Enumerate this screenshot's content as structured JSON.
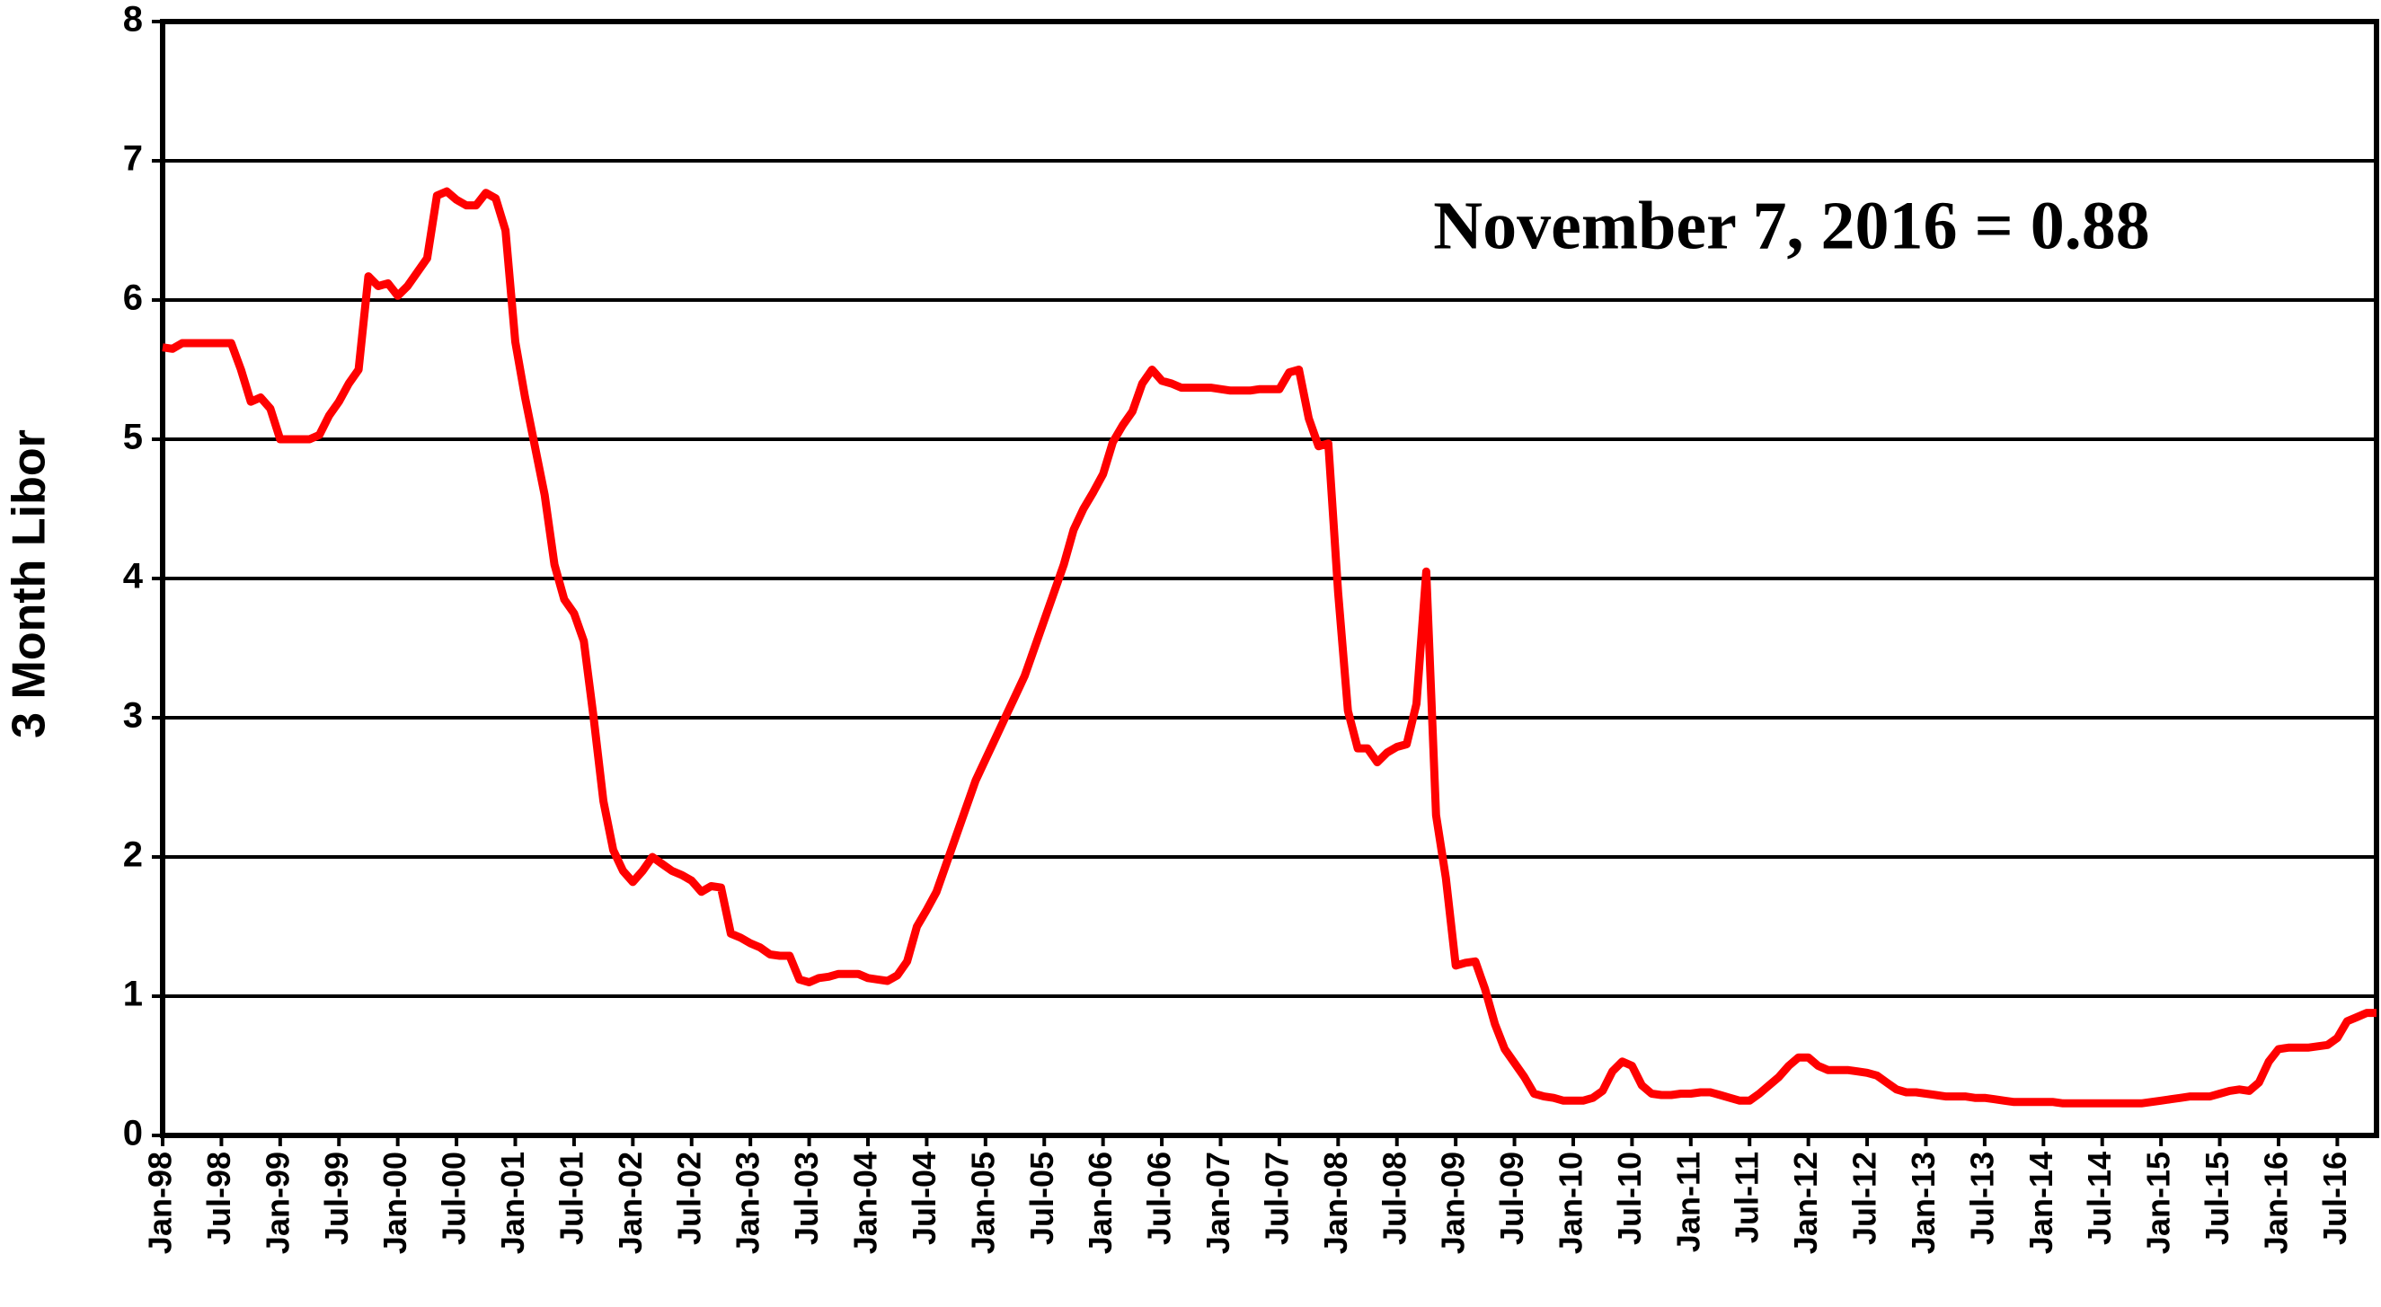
{
  "chart_data": {
    "type": "line",
    "y_label": "3 Month Libor",
    "annotation": "November 7, 2016 = 0.88",
    "annotation_color": "#3333ff",
    "ylim": [
      0,
      8
    ],
    "yticks": [
      0,
      1,
      2,
      3,
      4,
      5,
      6,
      7,
      8
    ],
    "grid": true,
    "categories": [
      "Jan-98",
      null,
      null,
      null,
      null,
      null,
      "Jul-98",
      null,
      null,
      null,
      null,
      null,
      "Jan-99",
      null,
      null,
      null,
      null,
      null,
      "Jul-99",
      null,
      null,
      null,
      null,
      null,
      "Jan-00",
      null,
      null,
      null,
      null,
      null,
      "Jul-00",
      null,
      null,
      null,
      null,
      null,
      "Jan-01",
      null,
      null,
      null,
      null,
      null,
      "Jul-01",
      null,
      null,
      null,
      null,
      null,
      "Jan-02",
      null,
      null,
      null,
      null,
      null,
      "Jul-02",
      null,
      null,
      null,
      null,
      null,
      "Jan-03",
      null,
      null,
      null,
      null,
      null,
      "Jul-03",
      null,
      null,
      null,
      null,
      null,
      "Jan-04",
      null,
      null,
      null,
      null,
      null,
      "Jul-04",
      null,
      null,
      null,
      null,
      null,
      "Jan-05",
      null,
      null,
      null,
      null,
      null,
      "Jul-05",
      null,
      null,
      null,
      null,
      null,
      "Jan-06",
      null,
      null,
      null,
      null,
      null,
      "Jul-06",
      null,
      null,
      null,
      null,
      null,
      "Jan-07",
      null,
      null,
      null,
      null,
      null,
      "Jul-07",
      null,
      null,
      null,
      null,
      null,
      "Jan-08",
      null,
      null,
      null,
      null,
      null,
      "Jul-08",
      null,
      null,
      null,
      null,
      null,
      "Jan-09",
      null,
      null,
      null,
      null,
      null,
      "Jul-09",
      null,
      null,
      null,
      null,
      null,
      "Jan-10",
      null,
      null,
      null,
      null,
      null,
      "Jul-10",
      null,
      null,
      null,
      null,
      null,
      "Jan-11",
      null,
      null,
      null,
      null,
      null,
      "Jul-11",
      null,
      null,
      null,
      null,
      null,
      "Jan-12",
      null,
      null,
      null,
      null,
      null,
      "Jul-12",
      null,
      null,
      null,
      null,
      null,
      "Jan-13",
      null,
      null,
      null,
      null,
      null,
      "Jul-13",
      null,
      null,
      null,
      null,
      null,
      "Jan-14",
      null,
      null,
      null,
      null,
      null,
      "Jul-14",
      null,
      null,
      null,
      null,
      null,
      "Jan-15",
      null,
      null,
      null,
      null,
      null,
      "Jul-15",
      null,
      null,
      null,
      null,
      null,
      "Jan-16",
      null,
      null,
      null,
      null,
      null,
      "Jul-16",
      null,
      null,
      null,
      null
    ],
    "series": [
      {
        "name": "3 Month Libor",
        "color": "#ff0000",
        "values": [
          5.66,
          5.65,
          5.69,
          5.69,
          5.69,
          5.69,
          5.69,
          5.69,
          5.5,
          5.27,
          5.3,
          5.22,
          5.0,
          5.0,
          5.0,
          5.0,
          5.03,
          5.17,
          5.27,
          5.4,
          5.5,
          6.17,
          6.1,
          6.12,
          6.03,
          6.1,
          6.2,
          6.3,
          6.75,
          6.78,
          6.72,
          6.68,
          6.68,
          6.77,
          6.73,
          6.5,
          5.7,
          5.3,
          4.95,
          4.6,
          4.1,
          3.85,
          3.75,
          3.55,
          3.0,
          2.4,
          2.05,
          1.9,
          1.82,
          1.9,
          2.0,
          1.95,
          1.9,
          1.87,
          1.83,
          1.75,
          1.79,
          1.78,
          1.45,
          1.42,
          1.38,
          1.35,
          1.3,
          1.29,
          1.29,
          1.12,
          1.1,
          1.13,
          1.14,
          1.16,
          1.16,
          1.16,
          1.13,
          1.12,
          1.11,
          1.15,
          1.25,
          1.5,
          1.62,
          1.75,
          1.95,
          2.15,
          2.35,
          2.55,
          2.7,
          2.85,
          3.0,
          3.15,
          3.3,
          3.5,
          3.7,
          3.9,
          4.1,
          4.35,
          4.5,
          4.62,
          4.75,
          4.98,
          5.1,
          5.2,
          5.4,
          5.5,
          5.42,
          5.4,
          5.37,
          5.37,
          5.37,
          5.37,
          5.36,
          5.35,
          5.35,
          5.35,
          5.36,
          5.36,
          5.36,
          5.48,
          5.5,
          5.15,
          4.95,
          4.97,
          3.9,
          3.05,
          2.78,
          2.78,
          2.68,
          2.75,
          2.79,
          2.81,
          3.1,
          4.05,
          2.3,
          1.85,
          1.22,
          1.24,
          1.25,
          1.05,
          0.8,
          0.62,
          0.52,
          0.42,
          0.3,
          0.28,
          0.27,
          0.25,
          0.25,
          0.25,
          0.27,
          0.32,
          0.46,
          0.53,
          0.5,
          0.36,
          0.3,
          0.29,
          0.29,
          0.3,
          0.3,
          0.31,
          0.31,
          0.29,
          0.27,
          0.25,
          0.25,
          0.3,
          0.36,
          0.42,
          0.5,
          0.56,
          0.56,
          0.5,
          0.47,
          0.47,
          0.47,
          0.46,
          0.45,
          0.43,
          0.38,
          0.33,
          0.31,
          0.31,
          0.3,
          0.29,
          0.28,
          0.28,
          0.28,
          0.27,
          0.27,
          0.26,
          0.25,
          0.24,
          0.24,
          0.24,
          0.24,
          0.24,
          0.23,
          0.23,
          0.23,
          0.23,
          0.23,
          0.23,
          0.23,
          0.23,
          0.23,
          0.24,
          0.25,
          0.26,
          0.27,
          0.28,
          0.28,
          0.28,
          0.3,
          0.32,
          0.33,
          0.32,
          0.38,
          0.53,
          0.62,
          0.63,
          0.63,
          0.63,
          0.64,
          0.65,
          0.7,
          0.82,
          0.85,
          0.88,
          0.88
        ]
      }
    ]
  }
}
